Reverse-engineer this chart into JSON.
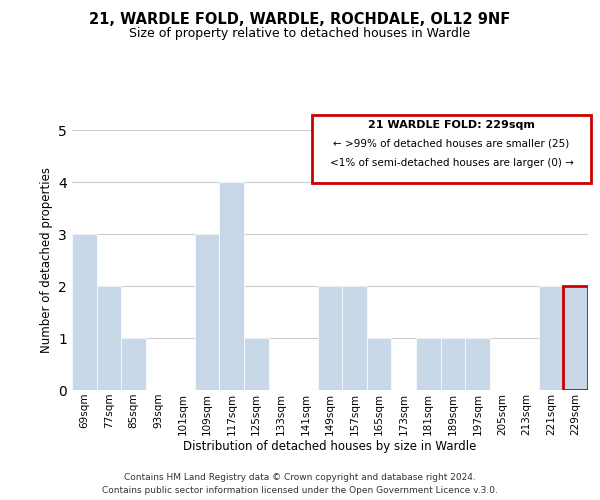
{
  "title": "21, WARDLE FOLD, WARDLE, ROCHDALE, OL12 9NF",
  "subtitle": "Size of property relative to detached houses in Wardle",
  "xlabel": "Distribution of detached houses by size in Wardle",
  "ylabel": "Number of detached properties",
  "bar_labels": [
    "69sqm",
    "77sqm",
    "85sqm",
    "93sqm",
    "101sqm",
    "109sqm",
    "117sqm",
    "125sqm",
    "133sqm",
    "141sqm",
    "149sqm",
    "157sqm",
    "165sqm",
    "173sqm",
    "181sqm",
    "189sqm",
    "197sqm",
    "205sqm",
    "213sqm",
    "221sqm",
    "229sqm"
  ],
  "bar_values": [
    3,
    2,
    1,
    0,
    0,
    3,
    4,
    1,
    0,
    0,
    2,
    2,
    1,
    0,
    1,
    1,
    1,
    0,
    0,
    2,
    2
  ],
  "bar_color": "#c8d8e8",
  "bar_edge_color": "#ffffff",
  "highlight_index": 20,
  "highlight_edge_color": "#cc0000",
  "highlight_edge_width": 2.0,
  "legend_title": "21 WARDLE FOLD: 229sqm",
  "legend_line1": "← >99% of detached houses are smaller (25)",
  "legend_line2": "<1% of semi-detached houses are larger (0) →",
  "legend_box_edge_color": "#cc0000",
  "ylim": [
    0,
    5
  ],
  "yticks": [
    0,
    1,
    2,
    3,
    4,
    5
  ],
  "footer1": "Contains HM Land Registry data © Crown copyright and database right 2024.",
  "footer2": "Contains public sector information licensed under the Open Government Licence v.3.0.",
  "background_color": "#ffffff",
  "grid_color": "#cccccc"
}
